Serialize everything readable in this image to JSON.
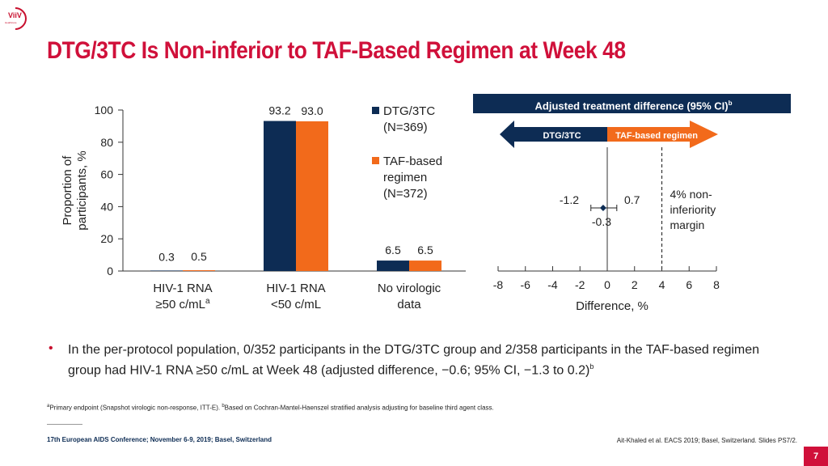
{
  "logo": {
    "text": "ViiV",
    "sub": "Healthcare"
  },
  "title": "DTG/3TC Is Non-inferior to TAF-Based Regimen at Week 48",
  "colors": {
    "dtg": "#0d2c54",
    "taf": "#f26a1b",
    "title": "#d0103a"
  },
  "chart_data": [
    {
      "type": "bar",
      "ylabel": "Proportion of participants, %",
      "ylim": [
        0,
        100
      ],
      "yticks": [
        "0",
        "20",
        "40",
        "60",
        "80",
        "100"
      ],
      "categories": [
        {
          "line1": "HIV-1 RNA",
          "line2": "≥50 c/mL",
          "sup": "a"
        },
        {
          "line1": "HIV-1 RNA",
          "line2": "<50 c/mL",
          "sup": ""
        },
        {
          "line1": "No virologic",
          "line2": "data",
          "sup": ""
        }
      ],
      "series": [
        {
          "name": "DTG/3TC",
          "sub": "(N=369)",
          "values": [
            0.3,
            93.2,
            6.5
          ],
          "labels": [
            "0.3",
            "93.2",
            "6.5"
          ],
          "color": "#0d2c54"
        },
        {
          "name": "TAF-based regimen",
          "sub": "(N=372)",
          "values": [
            0.5,
            93.0,
            6.5
          ],
          "labels": [
            "0.5",
            "93.0",
            "6.5"
          ],
          "color": "#f26a1b"
        }
      ],
      "legend": [
        {
          "lines": [
            "DTG/3TC",
            "(N=369)"
          ]
        },
        {
          "lines": [
            "TAF-based",
            "regimen",
            "(N=372)"
          ]
        }
      ]
    },
    {
      "type": "scatter",
      "title": "Adjusted treatment difference (95% CI)",
      "title_sup": "b",
      "xlabel": "Difference, %",
      "xlim": [
        -8,
        8
      ],
      "xticks": [
        "-8",
        "-6",
        "-4",
        "-2",
        "0",
        "2",
        "4",
        "6",
        "8"
      ],
      "point": {
        "estimate": -0.3,
        "ci_low": -1.2,
        "ci_high": 0.7,
        "label_est": "-0.3",
        "label_low": "-1.2",
        "label_high": "0.7"
      },
      "margin": {
        "value": 4,
        "lines": [
          "4% non-",
          "inferiority",
          "margin"
        ]
      },
      "arrows": {
        "left": "DTG/3TC",
        "right": "TAF-based regimen"
      }
    }
  ],
  "bullet": {
    "text": "In the per-protocol population, 0/352 participants in the DTG/3TC group and 2/358 participants in the TAF-based regimen group had HIV-1 RNA ≥50 c/mL at Week 48 (adjusted difference, −0.6; 95% CI, −1.3 to 0.2)",
    "sup": "b"
  },
  "footnote": {
    "a_sup": "a",
    "a_text": "Primary endpoint (Snapshot virologic non-response, ITT-E). ",
    "b_sup": "b",
    "b_text": "Based on Cochran-Mantel-Haenszel stratified analysis adjusting for baseline third agent class."
  },
  "conference": "17th European AIDS Conference; November 6-9, 2019; Basel, Switzerland",
  "citation": "Ait-Khaled et al. EACS 2019; Basel, Switzerland. Slides PS7/2.",
  "page_number": "7"
}
